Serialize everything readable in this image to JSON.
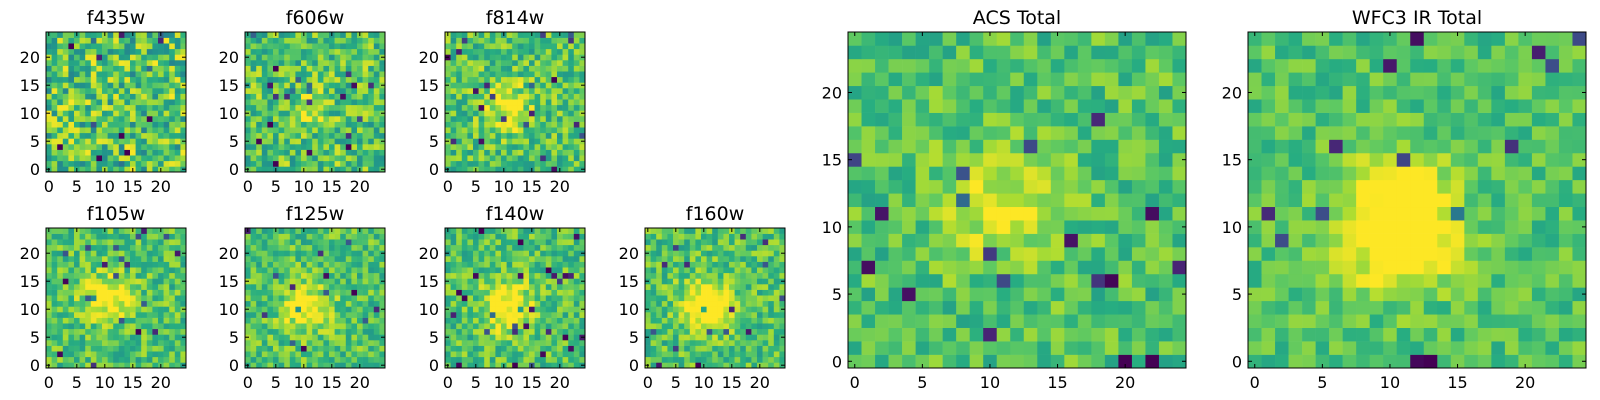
{
  "chart_data": [
    {
      "type": "heatmap",
      "title": "f435w",
      "xlim": [
        -0.5,
        24.5
      ],
      "ylim": [
        -0.5,
        24.5
      ],
      "xticks": [
        0,
        5,
        10,
        15,
        20
      ],
      "yticks": [
        0,
        5,
        10,
        15,
        20
      ],
      "grid": false,
      "colormap": "viridis",
      "seed": 11,
      "source_strength": 0.0,
      "background_variance": 0.55
    },
    {
      "type": "heatmap",
      "title": "f606w",
      "xlim": [
        -0.5,
        24.5
      ],
      "ylim": [
        -0.5,
        24.5
      ],
      "xticks": [
        0,
        5,
        10,
        15,
        20
      ],
      "yticks": [
        0,
        5,
        10,
        15,
        20
      ],
      "grid": false,
      "colormap": "viridis",
      "seed": 23,
      "source_strength": 0.12,
      "background_variance": 0.45
    },
    {
      "type": "heatmap",
      "title": "f814w",
      "xlim": [
        -0.5,
        24.5
      ],
      "ylim": [
        -0.5,
        24.5
      ],
      "xticks": [
        0,
        5,
        10,
        15,
        20
      ],
      "yticks": [
        0,
        5,
        10,
        15,
        20
      ],
      "grid": false,
      "colormap": "viridis",
      "seed": 37,
      "source_strength": 0.3,
      "background_variance": 0.4
    },
    {
      "type": "heatmap",
      "title": "f105w",
      "xlim": [
        -0.5,
        24.5
      ],
      "ylim": [
        -0.5,
        24.5
      ],
      "xticks": [
        0,
        5,
        10,
        15,
        20
      ],
      "yticks": [
        0,
        5,
        10,
        15,
        20
      ],
      "grid": false,
      "colormap": "viridis",
      "seed": 41,
      "source_strength": 0.35,
      "background_variance": 0.35
    },
    {
      "type": "heatmap",
      "title": "f125w",
      "xlim": [
        -0.5,
        24.5
      ],
      "ylim": [
        -0.5,
        24.5
      ],
      "xticks": [
        0,
        5,
        10,
        15,
        20
      ],
      "yticks": [
        0,
        5,
        10,
        15,
        20
      ],
      "grid": false,
      "colormap": "viridis",
      "seed": 53,
      "source_strength": 0.35,
      "background_variance": 0.35
    },
    {
      "type": "heatmap",
      "title": "f140w",
      "xlim": [
        -0.5,
        24.5
      ],
      "ylim": [
        -0.5,
        24.5
      ],
      "xticks": [
        0,
        5,
        10,
        15,
        20
      ],
      "yticks": [
        0,
        5,
        10,
        15,
        20
      ],
      "grid": false,
      "colormap": "viridis",
      "seed": 67,
      "source_strength": 0.4,
      "background_variance": 0.35
    },
    {
      "type": "heatmap",
      "title": "f160w",
      "xlim": [
        -0.5,
        24.5
      ],
      "ylim": [
        -0.5,
        24.5
      ],
      "xticks": [
        0,
        5,
        10,
        15,
        20
      ],
      "yticks": [
        0,
        5,
        10,
        15,
        20
      ],
      "grid": false,
      "colormap": "viridis",
      "seed": 79,
      "source_strength": 0.45,
      "background_variance": 0.35
    },
    {
      "type": "heatmap",
      "title": "ACS Total",
      "xlim": [
        -0.5,
        24.5
      ],
      "ylim": [
        -0.5,
        24.5
      ],
      "xticks": [
        0,
        5,
        10,
        15,
        20
      ],
      "yticks": [
        0,
        5,
        10,
        15,
        20
      ],
      "grid": false,
      "colormap": "viridis",
      "seed": 83,
      "source_strength": 0.25,
      "background_variance": 0.3
    },
    {
      "type": "heatmap",
      "title": "WFC3 IR Total",
      "xlim": [
        -0.5,
        24.5
      ],
      "ylim": [
        -0.5,
        24.5
      ],
      "xticks": [
        0,
        5,
        10,
        15,
        20
      ],
      "yticks": [
        0,
        5,
        10,
        15,
        20
      ],
      "grid": false,
      "colormap": "viridis",
      "seed": 97,
      "source_strength": 0.55,
      "background_variance": 0.25
    }
  ],
  "colors": {
    "viridis_dark": "#440154",
    "viridis_mid": "#21918c",
    "viridis_green": "#5ec962",
    "viridis_bright": "#fde725",
    "frame": "#000000"
  }
}
